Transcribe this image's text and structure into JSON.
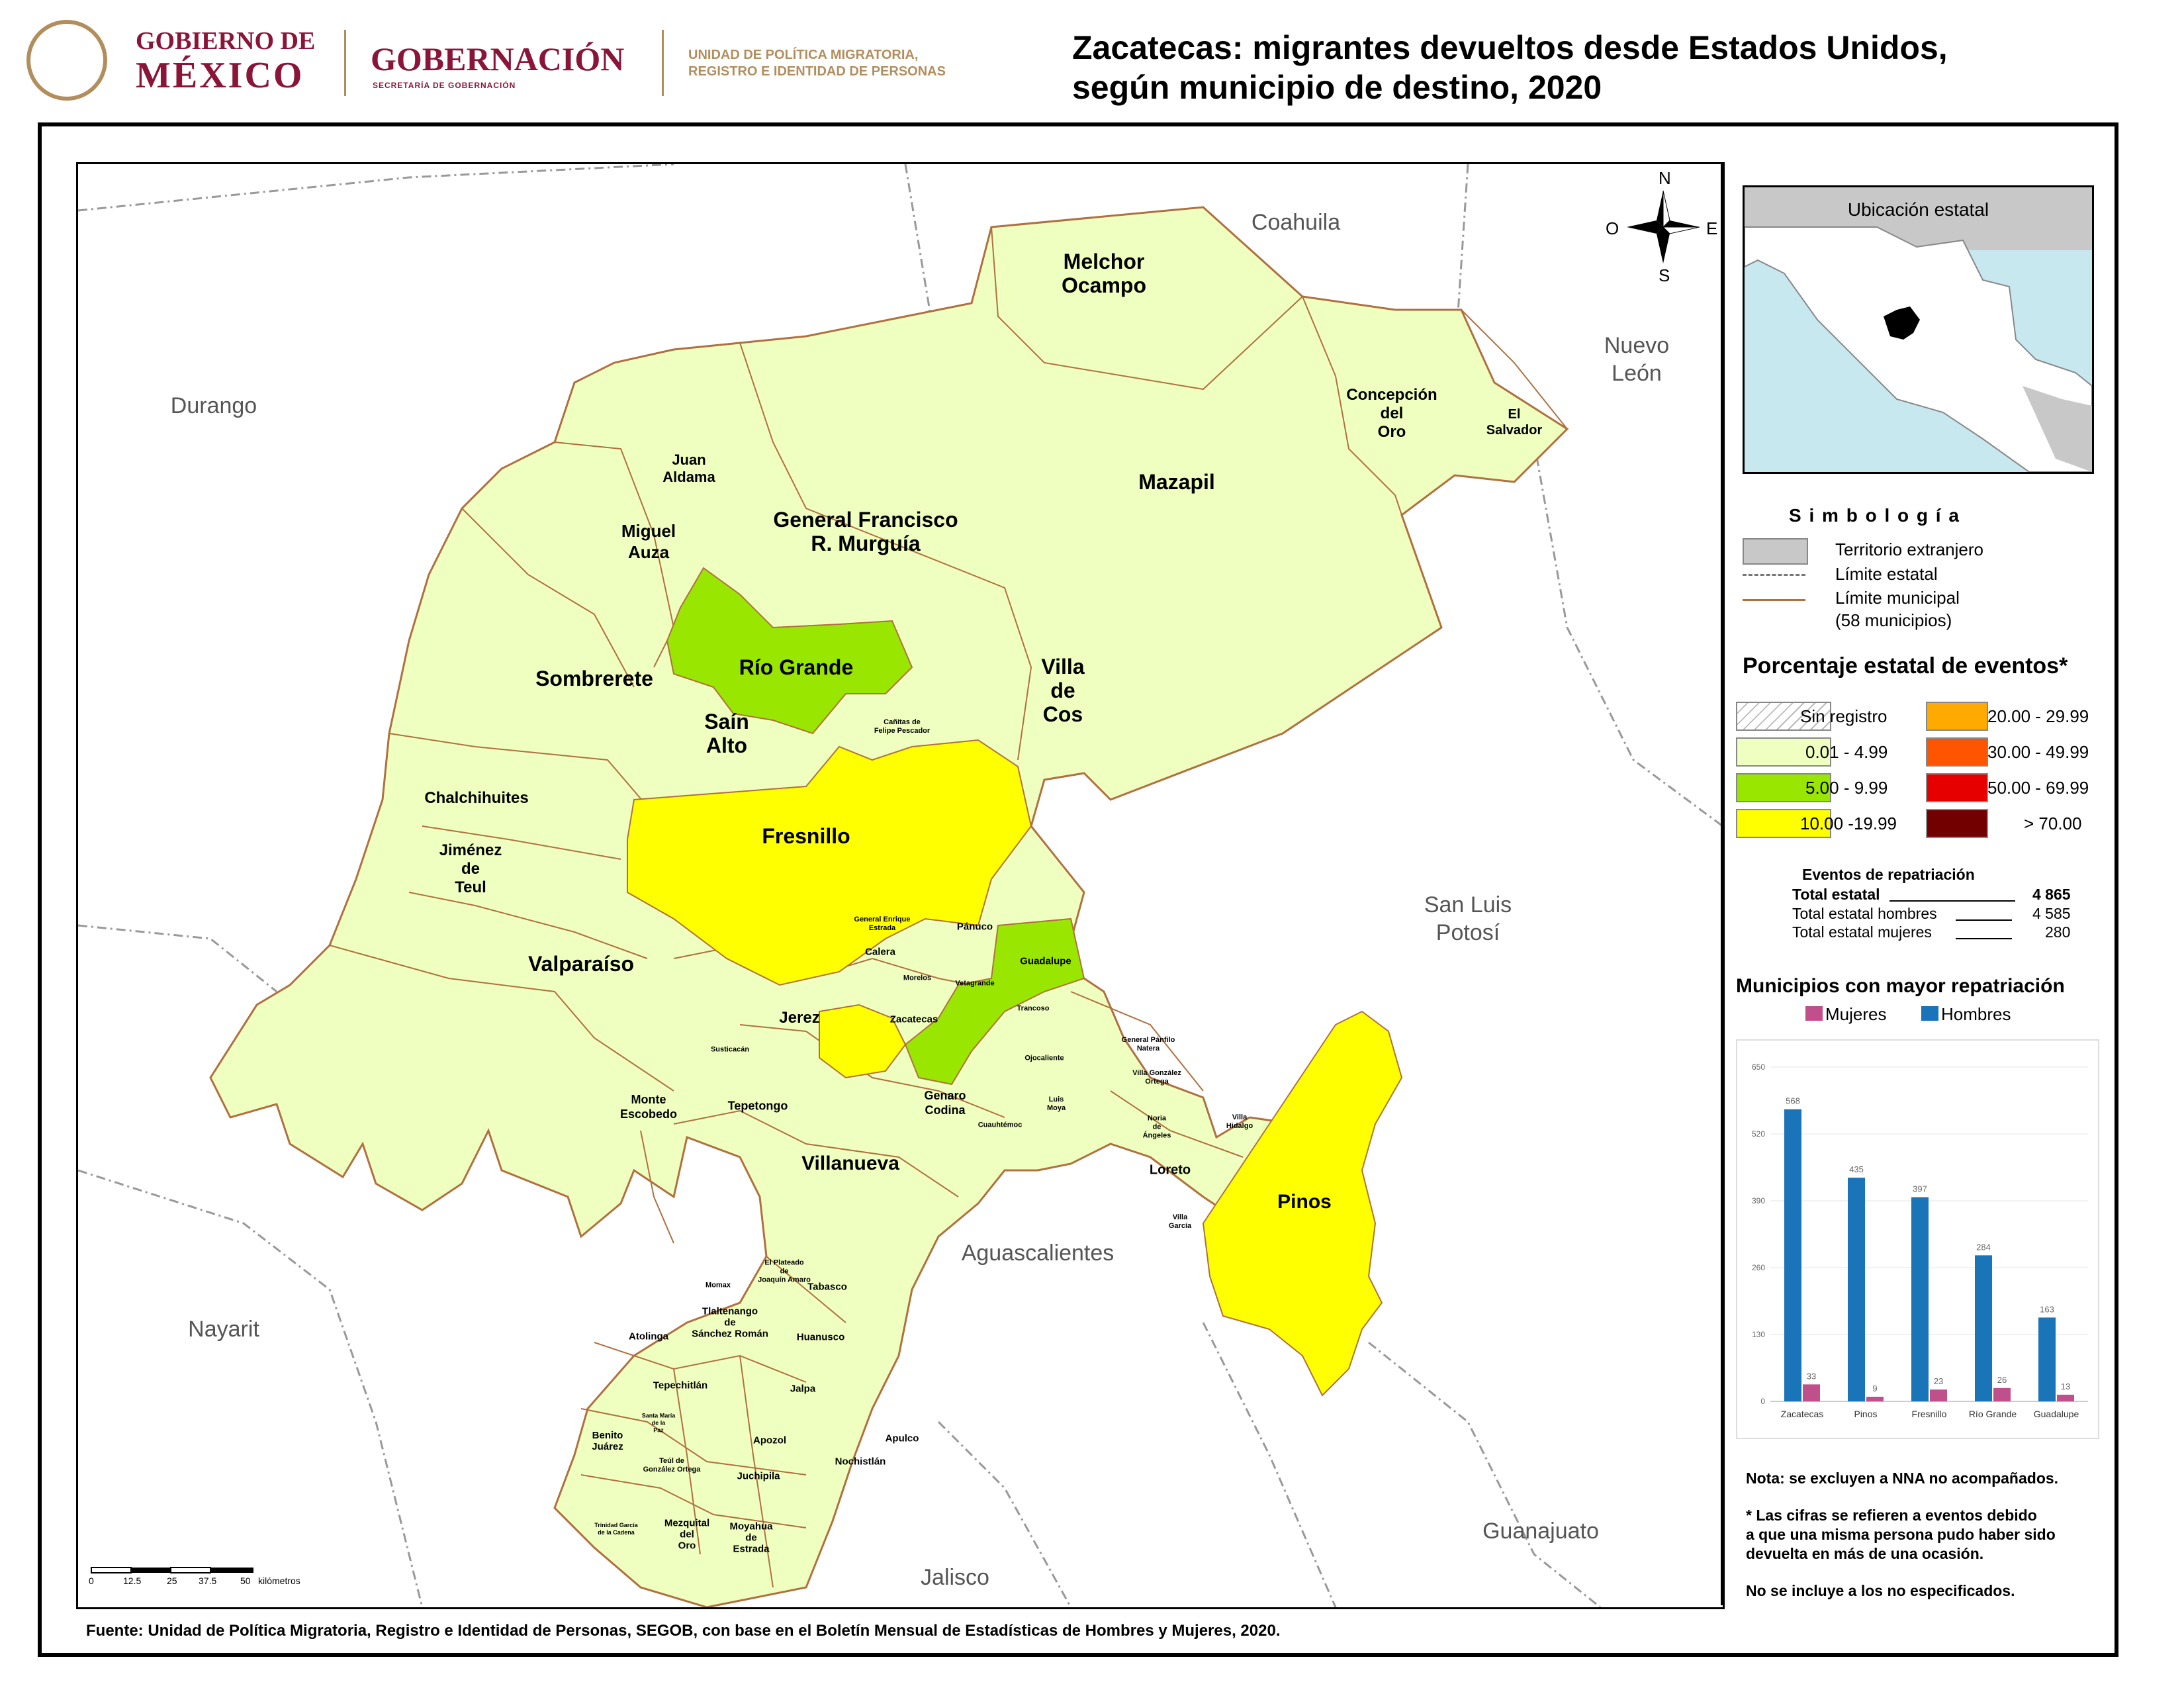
{
  "header": {
    "gob_line1": "GOBIERNO DE",
    "gob_line2": "MÉXICO",
    "gobernacion": "GOBERNACIÓN",
    "gobernacion_sub": "SECRETARÍA DE GOBERNACIÓN",
    "unidad_line1": "UNIDAD DE POLÍTICA MIGRATORIA,",
    "unidad_line2": "REGISTRO E IDENTIDAD DE PERSONAS",
    "title_line1": "Zacatecas: migrantes devueltos desde Estados Unidos,",
    "title_line2": "según municipio de destino, 2020"
  },
  "colors": {
    "foreign": "#c8c8c8",
    "cat_low": "#efffbf",
    "cat_mid": "#99e600",
    "cat_high": "#ffff00",
    "cat_20": "#ffaa00",
    "cat_30": "#ff5500",
    "cat_50": "#e60000",
    "cat_70": "#730000",
    "boundary": "#b07040",
    "bar_women": "#c0508c",
    "bar_men": "#1a74b8"
  },
  "compass": {
    "n": "N",
    "s": "S",
    "e": "E",
    "o": "O"
  },
  "states": {
    "coahuila": "Coahuila",
    "durango": "Durango",
    "nuevo_leon": "Nuevo\nLeón",
    "san_luis": "San Luis\nPotosí",
    "nayarit": "Nayarit",
    "aguascalientes": "Aguascalientes",
    "guanajuato": "Guanajuato",
    "jalisco": "Jalisco"
  },
  "municipalities": {
    "melchor_ocampo": "Melchor\nOcampo",
    "concepcion_del_oro": "Concepción\ndel\nOro",
    "el_salvador": "El\nSalvador",
    "mazapil": "Mazapil",
    "juan_aldama": "Juan\nAldama",
    "miguel_auza": "Miguel\nAuza",
    "gral_murguia": "General Francisco\nR. Murguía",
    "rio_grande": "Río Grande",
    "villa_de_cos": "Villa\nde\nCos",
    "sombrerete": "Sombrerete",
    "sain_alto": "Saín\nAlto",
    "canitas": "Cañitas de\nFelipe Pescador",
    "chalchihuites": "Chalchihuites",
    "fresnillo": "Fresnillo",
    "jimenez_del_teul": "Jiménez\nde\nTeul",
    "valparaiso": "Valparaíso",
    "gral_enrique_estrada": "General Enrique\nEstrada",
    "panuco": "Pánuco",
    "calera": "Calera",
    "guadalupe": "Guadalupe",
    "morelos": "Morelos",
    "vetagrande": "Vetagrande",
    "zacatecas": "Zacatecas",
    "trancoso": "Trancoso",
    "jerez": "Jerez",
    "susticacan": "Susticacán",
    "gral_panfilo_natera": "General Pánfilo\nNatera",
    "ojocaliente": "Ojocaliente",
    "villa_gonzalez_ortega": "Villa González\nOrtega",
    "monte_escobedo": "Monte\nEscobedo",
    "tepetongo": "Tepetongo",
    "genaro_codina": "Genaro\nCodina",
    "luis_moya": "Luis\nMoya",
    "noria_de_angeles": "Noria\nde\nÁngeles",
    "villa_hidalgo": "Villa\nHidalgo",
    "cuauhtemoc": "Cuauhtémoc",
    "villanueva": "Villanueva",
    "loreto": "Loreto",
    "pinos": "Pinos",
    "villa_garcia": "Villa\nGarcía",
    "el_plateado": "El Plateado\nde\nJoaquín Amaro",
    "momax": "Momax",
    "tabasco": "Tabasco",
    "tlaltenango": "Tlaltenango\nde\nSánchez Román",
    "atolinga": "Atolinga",
    "huanusco": "Huanusco",
    "tepechitlan": "Tepechitlán",
    "jalpa": "Jalpa",
    "santa_maria": "Santa María\nde la\nPaz",
    "benito_juarez": "Benito\nJuárez",
    "apozol": "Apozol",
    "apulco": "Apulco",
    "teul": "Teúl de\nGonzález Ortega",
    "nochistlan": "Nochistlán",
    "juchipila": "Juchipila",
    "trinidad_garcia": "Trinidad García\nde la Cadena",
    "mezquital": "Mezquital\ndel\nOro",
    "moyahua": "Moyahua\nde\nEstrada"
  },
  "scale": {
    "ticks": [
      "0",
      "12.5",
      "25",
      "37.5",
      "50"
    ],
    "unit": "kilómetros"
  },
  "inset": {
    "title": "Ubicación estatal"
  },
  "legend": {
    "simbologia_title": "S i m b o l o g í a",
    "territorio": "Territorio extranjero",
    "limite_estatal": "Límite estatal",
    "limite_municipal": "Límite municipal",
    "limite_municipal_count": "(58 municipios)",
    "pct_title": "Porcentaje estatal de eventos*",
    "cat_sin": "Sin registro",
    "cat_1": "0.01  - 4.99",
    "cat_2": "5.00  - 9.99",
    "cat_3": "10.00 -19.99",
    "cat_4": "20.00 - 29.99",
    "cat_5": "30.00 - 49.99",
    "cat_6": "50.00 - 69.99",
    "cat_7": "> 70.00"
  },
  "events": {
    "title": "Eventos de repatriación",
    "total_label": "Total estatal",
    "total_value": "4 865",
    "men_label": "Total estatal hombres",
    "men_value": "4 585",
    "women_label": "Total estatal mujeres",
    "women_value": "280"
  },
  "chart_data": {
    "type": "bar",
    "title": "Municipios con mayor repatriación",
    "categories": [
      "Zacatecas",
      "Pinos",
      "Fresnillo",
      "Río Grande",
      "Guadalupe"
    ],
    "series": [
      {
        "name": "Hombres",
        "values": [
          568,
          435,
          397,
          284,
          163
        ]
      },
      {
        "name": "Mujeres",
        "values": [
          33,
          9,
          23,
          26,
          13
        ]
      }
    ],
    "ylim": [
      0,
      650
    ],
    "yticks": [
      "0",
      "130",
      "260",
      "390",
      "520",
      "650"
    ],
    "legend": "top"
  },
  "notes": {
    "note1": "Nota: se excluyen a NNA no acompañados.",
    "note2": "* Las cifras se refieren a eventos debido\na que una misma persona pudo haber sido\ndevuelta en más de una ocasión.",
    "note3": "No se incluye a los no especificados."
  },
  "footer": {
    "source": "Fuente: Unidad de Política Migratoria, Registro e Identidad de Personas, SEGOB, con base en el Boletín Mensual de Estadísticas de Hombres y Mujeres, 2020."
  }
}
